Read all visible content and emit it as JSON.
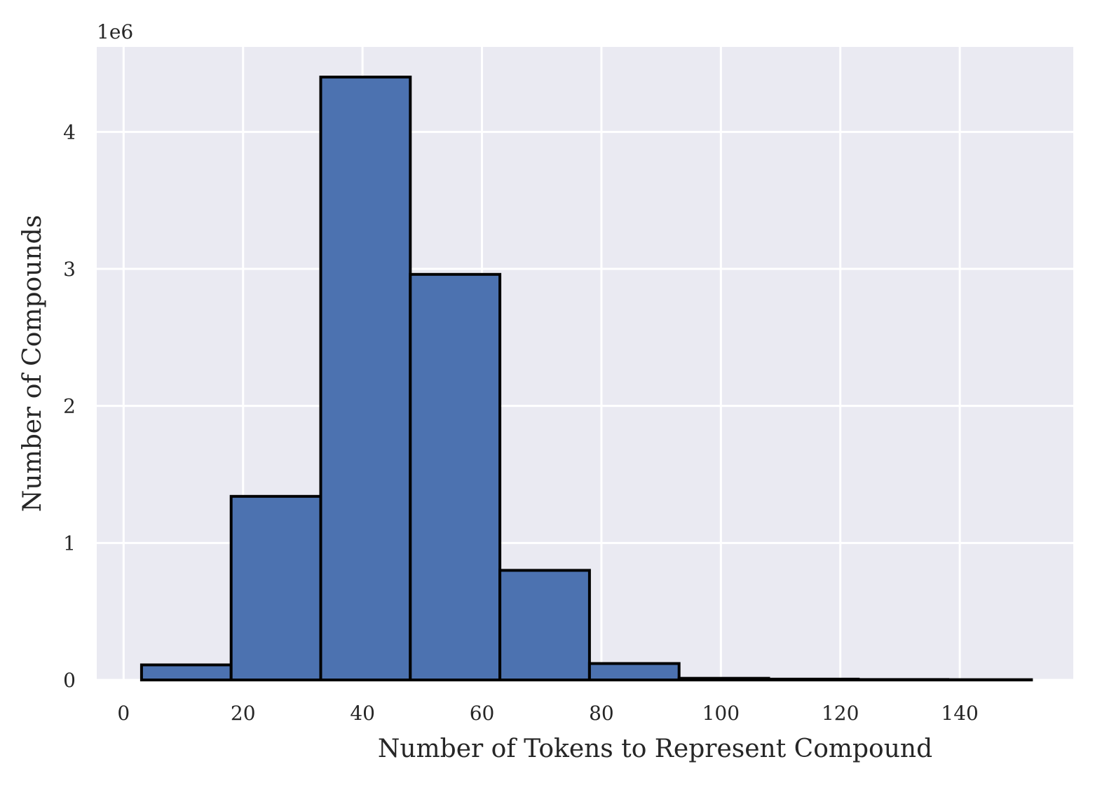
{
  "chart_data": {
    "type": "histogram",
    "xlabel": "Number of Tokens to Represent Compound",
    "ylabel": "Number of Compounds",
    "y_offset_label": "1e6",
    "xlim": [
      -4.5,
      159.0
    ],
    "ylim": [
      0,
      4.62
    ],
    "x_ticks": [
      0,
      20,
      40,
      60,
      80,
      100,
      120,
      140
    ],
    "x_tick_labels": [
      "0",
      "20",
      "40",
      "60",
      "80",
      "100",
      "120",
      "140"
    ],
    "y_ticks": [
      0,
      1,
      2,
      3,
      4
    ],
    "y_tick_labels": [
      "0",
      "1",
      "2",
      "3",
      "4"
    ],
    "bin_edges": [
      3,
      18,
      33,
      48,
      63,
      78,
      93,
      108,
      123,
      138,
      152
    ],
    "values": [
      0.11,
      1.34,
      4.4,
      2.96,
      0.8,
      0.12,
      0.012,
      0.006,
      0.003,
      0.002
    ],
    "value_scale": 1000000,
    "grid": true,
    "colors": {
      "background": "#eaeaf2",
      "bar_fill": "#4c72b0",
      "bar_edge": "#000000",
      "grid": "#ffffff"
    }
  }
}
